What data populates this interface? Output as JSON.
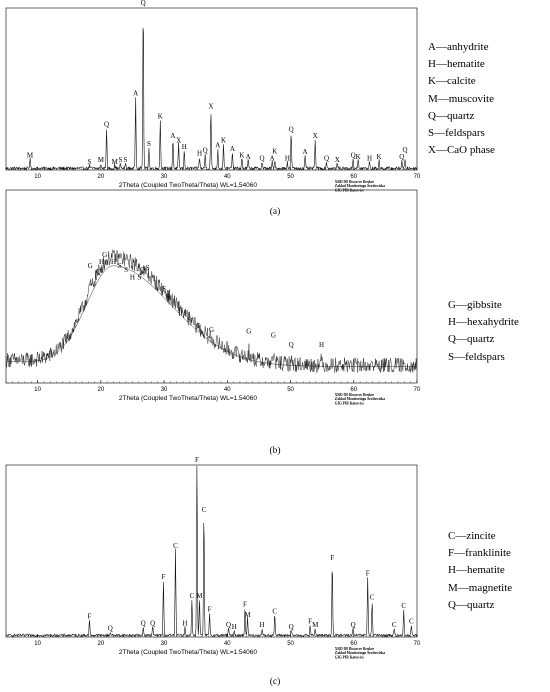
{
  "chart_data": [
    {
      "type": "line",
      "panel_label": "(a)",
      "xlabel": "2Theta (Coupled TwoTheta/Theta) WL=1,54060",
      "instrument": [
        "XRD D8 Discover Bruker",
        "Zakład Monitoringu Środowiska",
        "GIG PIB Katowice"
      ],
      "xlim": [
        5,
        70
      ],
      "x_ticks": [
        10,
        20,
        30,
        40,
        50,
        60,
        70
      ],
      "baseline_noise": 0.02,
      "legend": [
        "A—anhydrite",
        "H—hematite",
        "K—calcite",
        "M—muscovite",
        "Q—quartz",
        "S—feldspars",
        "X—CaO phase"
      ],
      "peaks": [
        {
          "x": 8.8,
          "y": 0.06,
          "label": "M"
        },
        {
          "x": 18.2,
          "y": 0.02,
          "label": "S"
        },
        {
          "x": 20.0,
          "y": 0.03,
          "label": "M"
        },
        {
          "x": 20.9,
          "y": 0.25,
          "label": "Q"
        },
        {
          "x": 22.2,
          "y": 0.02,
          "label": "M"
        },
        {
          "x": 23.1,
          "y": 0.03,
          "label": "S"
        },
        {
          "x": 23.9,
          "y": 0.03,
          "label": "S"
        },
        {
          "x": 25.5,
          "y": 0.44,
          "label": "A"
        },
        {
          "x": 26.7,
          "y": 1.0,
          "label": "Q"
        },
        {
          "x": 27.6,
          "y": 0.13,
          "label": "S"
        },
        {
          "x": 29.4,
          "y": 0.3,
          "label": "K"
        },
        {
          "x": 31.4,
          "y": 0.18,
          "label": "A"
        },
        {
          "x": 32.3,
          "y": 0.15,
          "label": "X"
        },
        {
          "x": 33.2,
          "y": 0.11,
          "label": "H"
        },
        {
          "x": 35.6,
          "y": 0.07,
          "label": "H"
        },
        {
          "x": 36.5,
          "y": 0.09,
          "label": "Q"
        },
        {
          "x": 37.4,
          "y": 0.36,
          "label": "X"
        },
        {
          "x": 38.5,
          "y": 0.12,
          "label": "A"
        },
        {
          "x": 39.4,
          "y": 0.15,
          "label": "K"
        },
        {
          "x": 40.8,
          "y": 0.1,
          "label": "A"
        },
        {
          "x": 42.3,
          "y": 0.06,
          "label": "K"
        },
        {
          "x": 43.3,
          "y": 0.05,
          "label": "A"
        },
        {
          "x": 45.5,
          "y": 0.04,
          "label": "Q"
        },
        {
          "x": 47.1,
          "y": 0.04,
          "label": "A"
        },
        {
          "x": 47.5,
          "y": 0.04,
          "label": "K"
        },
        {
          "x": 49.5,
          "y": 0.04,
          "label": "H"
        },
        {
          "x": 50.1,
          "y": 0.22,
          "label": "Q"
        },
        {
          "x": 52.3,
          "y": 0.08,
          "label": "A"
        },
        {
          "x": 53.9,
          "y": 0.18,
          "label": "X"
        },
        {
          "x": 55.7,
          "y": 0.04,
          "label": "Q"
        },
        {
          "x": 57.4,
          "y": 0.03,
          "label": "X"
        },
        {
          "x": 59.9,
          "y": 0.06,
          "label": "Q"
        },
        {
          "x": 60.7,
          "y": 0.05,
          "label": "K"
        },
        {
          "x": 62.5,
          "y": 0.04,
          "label": "H"
        },
        {
          "x": 64.0,
          "y": 0.05,
          "label": "K"
        },
        {
          "x": 67.6,
          "y": 0.05,
          "label": "Q"
        },
        {
          "x": 68.1,
          "y": 0.05,
          "label": "Q"
        }
      ]
    },
    {
      "type": "line",
      "panel_label": "(b)",
      "xlabel": "2Theta (Coupled TwoTheta/Theta) WL=1.54060",
      "instrument": [
        "XRD D8 Discover Bruker",
        "Zakład Monitoringu Środowiska",
        "GIG PIB Katowice"
      ],
      "xlim": [
        5,
        70
      ],
      "x_ticks": [
        10,
        20,
        30,
        40,
        50,
        60,
        70
      ],
      "amorphous_hump": {
        "center": 22,
        "amplitude": 0.55,
        "baseline": 0.09
      },
      "baseline_noise": 0.08,
      "legend": [
        "G—gibbsite",
        "H—hexahydrite",
        "Q—quartz",
        "S—feldspars"
      ],
      "peaks": [
        {
          "x": 18.3,
          "y": 0.58,
          "label": "G"
        },
        {
          "x": 19.6,
          "y": 0.55,
          "label": "Q"
        },
        {
          "x": 20.1,
          "y": 0.6,
          "label": "H"
        },
        {
          "x": 20.6,
          "y": 0.6,
          "label": "G"
        },
        {
          "x": 22.0,
          "y": 0.6,
          "label": "H"
        },
        {
          "x": 23.0,
          "y": 0.58,
          "label": "S"
        },
        {
          "x": 24.0,
          "y": 0.56,
          "label": "S"
        },
        {
          "x": 25.0,
          "y": 0.52,
          "label": "H"
        },
        {
          "x": 26.1,
          "y": 0.52,
          "label": "S"
        },
        {
          "x": 26.6,
          "y": 0.56,
          "label": "Q"
        },
        {
          "x": 27.4,
          "y": 0.57,
          "label": "S"
        },
        {
          "x": 30.0,
          "y": 0.46,
          "label": "S"
        },
        {
          "x": 30.6,
          "y": 0.42,
          "label": "S"
        },
        {
          "x": 32.6,
          "y": 0.35,
          "label": "H"
        },
        {
          "x": 33.9,
          "y": 0.3,
          "label": "S"
        },
        {
          "x": 35.4,
          "y": 0.27,
          "label": "G"
        },
        {
          "x": 37.5,
          "y": 0.25,
          "label": "G"
        },
        {
          "x": 43.4,
          "y": 0.24,
          "label": "G"
        },
        {
          "x": 47.3,
          "y": 0.22,
          "label": "G"
        },
        {
          "x": 50.1,
          "y": 0.17,
          "label": "Q"
        },
        {
          "x": 54.9,
          "y": 0.17,
          "label": "H"
        }
      ]
    },
    {
      "type": "line",
      "panel_label": "(c)",
      "xlabel": "2Theta (Coupled TwoTheta/Theta) WL=1.54060",
      "instrument": [
        "XRD D8 Discover Bruker",
        "Zakład Monitoringu Środowiska",
        "GIG PIB Katowice"
      ],
      "xlim": [
        5,
        70
      ],
      "x_ticks": [
        10,
        20,
        30,
        40,
        50,
        60,
        70
      ],
      "baseline_noise": 0.015,
      "legend": [
        "C—zincite",
        "F—franklinite",
        "H—hematite",
        "M—magnetite",
        "Q—quartz"
      ],
      "peaks": [
        {
          "x": 18.2,
          "y": 0.09,
          "label": "F"
        },
        {
          "x": 21.5,
          "y": 0.02,
          "label": "Q"
        },
        {
          "x": 26.7,
          "y": 0.05,
          "label": "Q"
        },
        {
          "x": 28.2,
          "y": 0.05,
          "label": "Q"
        },
        {
          "x": 29.9,
          "y": 0.32,
          "label": "F"
        },
        {
          "x": 31.8,
          "y": 0.5,
          "label": "C"
        },
        {
          "x": 33.3,
          "y": 0.05,
          "label": "H"
        },
        {
          "x": 34.4,
          "y": 0.21,
          "label": "C"
        },
        {
          "x": 35.2,
          "y": 1.0,
          "label": "F"
        },
        {
          "x": 35.6,
          "y": 0.21,
          "label": "M"
        },
        {
          "x": 36.3,
          "y": 0.71,
          "label": "C"
        },
        {
          "x": 37.2,
          "y": 0.13,
          "label": "F"
        },
        {
          "x": 40.2,
          "y": 0.04,
          "label": "Q"
        },
        {
          "x": 41.1,
          "y": 0.03,
          "label": "H"
        },
        {
          "x": 42.8,
          "y": 0.16,
          "label": "F"
        },
        {
          "x": 43.2,
          "y": 0.1,
          "label": "M"
        },
        {
          "x": 45.5,
          "y": 0.04,
          "label": "H"
        },
        {
          "x": 47.5,
          "y": 0.12,
          "label": "C"
        },
        {
          "x": 50.1,
          "y": 0.03,
          "label": "Q"
        },
        {
          "x": 53.1,
          "y": 0.06,
          "label": "F"
        },
        {
          "x": 53.9,
          "y": 0.04,
          "label": "M"
        },
        {
          "x": 56.6,
          "y": 0.43,
          "label": "F"
        },
        {
          "x": 59.9,
          "y": 0.04,
          "label": "Q"
        },
        {
          "x": 62.2,
          "y": 0.34,
          "label": "F"
        },
        {
          "x": 62.9,
          "y": 0.2,
          "label": "C"
        },
        {
          "x": 66.4,
          "y": 0.04,
          "label": "C"
        },
        {
          "x": 67.9,
          "y": 0.15,
          "label": "C"
        },
        {
          "x": 69.1,
          "y": 0.06,
          "label": "C"
        }
      ]
    }
  ]
}
